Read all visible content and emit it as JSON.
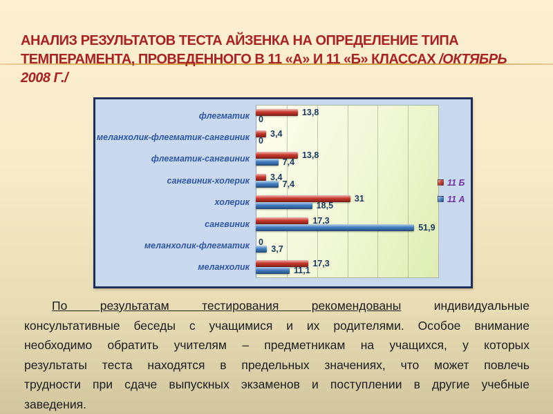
{
  "slide": {
    "background_top_color": "#fcefd2",
    "background_bottom_color": "#d2c69e",
    "accent_line_color": "#d99f3f",
    "title": {
      "color": "#a82222",
      "line1": "АНАЛИЗ РЕЗУЛЬТАТОВ ТЕСТА АЙЗЕНКА НА ОПРЕДЕЛЕНИЕ ТИПА",
      "line2": "ТЕМПЕРАМЕНТА, ПРОВЕДЕННОГО В 11 «А» И 11 «Б» КЛАССАХ ",
      "line2_italic": "/ОКТЯБРЬ",
      "line3_italic": "2008 Г./"
    },
    "paragraph": {
      "line1_underlined": "По результатам тестирования рекомендованы",
      "line1_rest": " индивидуальные",
      "line2": "консультативные беседы с учащимися и их родителями. Особое внимание",
      "line3": "необходимо обратить учителям – предметникам на учащихся, у которых",
      "line4": "результаты теста находятся в предельных значениях, что может повлечь",
      "line5": "трудности при сдаче выпускных экзаменов и поступлении в другие учебные",
      "line6": "заведения."
    }
  },
  "chart_data": {
    "type": "bar",
    "orientation": "horizontal",
    "title": "",
    "categories": [
      "флегматик",
      "меланхолик-флегматик-сангвиник",
      "флегматик-сангвиник",
      "сангвиник-холерик",
      "холерик",
      "сангвиник",
      "меланхолик-флегматик",
      "меланхолик"
    ],
    "series": [
      {
        "name": "11 Б",
        "color": "#c6362a",
        "values": [
          13.8,
          3.4,
          13.8,
          3.4,
          31,
          17.3,
          0,
          17.3
        ],
        "labels": [
          "13,8",
          "3,4",
          "13,8",
          "3,4",
          "31",
          "17,3",
          "0",
          "17,3"
        ]
      },
      {
        "name": "11 А",
        "color": "#3f7cc0",
        "values": [
          0,
          0,
          7.4,
          7.4,
          18.5,
          51.9,
          3.7,
          11.1
        ],
        "labels": [
          "0",
          "0",
          "7,4",
          "7,4",
          "18,5",
          "51,9",
          "3,7",
          "11,1"
        ]
      }
    ],
    "xlim": [
      0,
      60
    ],
    "gridline_interval": 10,
    "grid": true,
    "legend_position": "right",
    "legend_text_color": "#7030a0",
    "value_label_color": "#17375e",
    "category_label_color": "#2e55a4",
    "chart_bg": "#c9d9f0",
    "plot_bg": "#eef6d2",
    "chart_border_color": "#1e2e5a"
  }
}
